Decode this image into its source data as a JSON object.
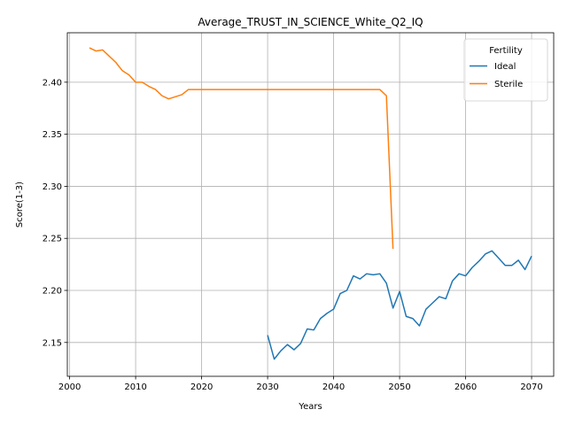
{
  "chart_data": {
    "type": "line",
    "title": "Average_TRUST_IN_SCIENCE_White_Q2_IQ",
    "xlabel": "Years",
    "ylabel": "Score(1-3)",
    "xlim": [
      1999.65,
      2073.35
    ],
    "ylim": [
      2.1175,
      2.4475
    ],
    "x_ticks": [
      2000,
      2010,
      2020,
      2030,
      2040,
      2050,
      2060,
      2070
    ],
    "y_ticks": [
      2.15,
      2.2,
      2.25,
      2.3,
      2.35,
      2.4
    ],
    "grid": true,
    "legend": {
      "title": "Fertility",
      "position": "top-right"
    },
    "series": [
      {
        "name": "Ideal",
        "color": "#1f77b4",
        "x": [
          2030,
          2031,
          2032,
          2033,
          2034,
          2035,
          2036,
          2037,
          2038,
          2039,
          2040,
          2041,
          2042,
          2043,
          2044,
          2045,
          2046,
          2047,
          2048,
          2049,
          2050,
          2051,
          2052,
          2053,
          2054,
          2055,
          2056,
          2057,
          2058,
          2059,
          2060,
          2061,
          2062,
          2063,
          2064,
          2065,
          2066,
          2067,
          2068,
          2069,
          2070
        ],
        "y": [
          2.157,
          2.134,
          2.142,
          2.148,
          2.143,
          2.149,
          2.163,
          2.162,
          2.173,
          2.178,
          2.182,
          2.197,
          2.2,
          2.214,
          2.211,
          2.216,
          2.215,
          2.216,
          2.207,
          2.183,
          2.199,
          2.175,
          2.173,
          2.166,
          2.182,
          2.188,
          2.194,
          2.192,
          2.209,
          2.216,
          2.214,
          2.222,
          2.228,
          2.235,
          2.238,
          2.231,
          2.224,
          2.224,
          2.229,
          2.22,
          2.233
        ]
      },
      {
        "name": "Sterile",
        "color": "#ff7f0e",
        "x": [
          2003,
          2004,
          2005,
          2006,
          2007,
          2008,
          2009,
          2010,
          2011,
          2012,
          2013,
          2014,
          2015,
          2016,
          2017,
          2018,
          2019,
          2020,
          2021,
          2022,
          2023,
          2024,
          2025,
          2026,
          2027,
          2028,
          2029,
          2030,
          2031,
          2032,
          2033,
          2034,
          2035,
          2036,
          2037,
          2038,
          2039,
          2040,
          2041,
          2042,
          2043,
          2044,
          2045,
          2046,
          2047,
          2048,
          2049
        ],
        "y": [
          2.433,
          2.43,
          2.431,
          2.425,
          2.419,
          2.411,
          2.407,
          2.4,
          2.4,
          2.396,
          2.393,
          2.387,
          2.384,
          2.386,
          2.388,
          2.393,
          2.393,
          2.393,
          2.393,
          2.393,
          2.393,
          2.393,
          2.393,
          2.393,
          2.393,
          2.393,
          2.393,
          2.393,
          2.393,
          2.393,
          2.393,
          2.393,
          2.393,
          2.393,
          2.393,
          2.393,
          2.393,
          2.393,
          2.393,
          2.393,
          2.393,
          2.393,
          2.393,
          2.393,
          2.393,
          2.387,
          2.24
        ]
      }
    ]
  }
}
